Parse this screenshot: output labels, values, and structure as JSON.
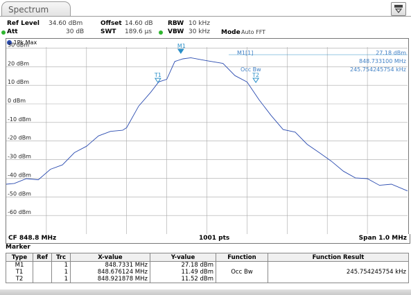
{
  "window": {
    "tab_title": "Spectrum"
  },
  "settings": {
    "ref_level_label": "Ref Level",
    "ref_level_value": "34.60 dBm",
    "offset_label": "Offset",
    "offset_value": "14.60 dB",
    "rbw_label": "RBW",
    "rbw_value": "10 kHz",
    "att_label": "Att",
    "att_value": "30 dB",
    "swt_label": "SWT",
    "swt_value": "189.6 µs",
    "vbw_label": "VBW",
    "vbw_value": "30 kHz",
    "mode_label": "Mode",
    "mode_value": "Auto FFT"
  },
  "trace": {
    "label": "1Pk Max",
    "color": "#2a4bb0"
  },
  "axis": {
    "y_ticks": [
      "30 dBm",
      "20 dBm",
      "10 dBm",
      "0 dBm",
      "-10 dBm",
      "-20 dBm",
      "-30 dBm",
      "-40 dBm",
      "-50 dBm",
      "-60 dBm"
    ],
    "y_min": -70,
    "y_max": 35
  },
  "markers": {
    "m1_label": "M1",
    "t1_label": "T1",
    "t2_label": "T2",
    "readout_name": "M1[1]",
    "readout_level": "27.18 dBm",
    "readout_freq": "848.733100 MHz",
    "occbw_label": "Occ Bw",
    "occbw_value": "245.754245754 kHz"
  },
  "footer": {
    "center": "CF 848.8 MHz",
    "points": "1001 pts",
    "span": "Span 1.0 MHz"
  },
  "marker_table": {
    "title": "Marker",
    "headers": [
      "Type",
      "Ref",
      "Trc",
      "X-value",
      "Y-value",
      "Function",
      "Function Result"
    ],
    "rows": [
      [
        "M1",
        "",
        "1",
        "848.7331 MHz",
        "27.18 dBm",
        "",
        ""
      ],
      [
        "T1",
        "",
        "1",
        "848.676124 MHz",
        "11.49 dBm",
        "Occ Bw",
        "245.754245754 kHz"
      ],
      [
        "T2",
        "",
        "1",
        "848.921878 MHz",
        "11.52 dBm",
        "",
        ""
      ]
    ]
  },
  "chart_data": {
    "type": "line",
    "ylabel": "dBm",
    "ylim": [
      -70,
      35
    ],
    "xlabel": "",
    "series": [
      {
        "x": [
          0,
          0.02,
          0.05,
          0.08,
          0.11,
          0.14,
          0.17,
          0.2,
          0.23,
          0.26,
          0.29,
          0.3,
          0.33,
          0.36,
          0.38,
          0.4,
          0.42,
          0.44,
          0.46,
          0.5,
          0.54,
          0.57,
          0.6,
          0.63,
          0.66,
          0.69,
          0.72,
          0.75,
          0.78,
          0.81,
          0.84,
          0.87,
          0.9,
          0.93,
          0.96,
          1.0
        ],
        "values": [
          -44,
          -42,
          -41,
          -40,
          -36,
          -32,
          -27,
          -22,
          -18,
          -14,
          -15,
          -12,
          -2,
          7,
          11,
          14,
          22,
          25,
          24,
          24,
          21,
          16,
          11,
          3,
          -7,
          -13,
          -16,
          -21,
          -27,
          -30,
          -37,
          -39,
          -41,
          -43,
          -44,
          -46
        ]
      }
    ]
  }
}
